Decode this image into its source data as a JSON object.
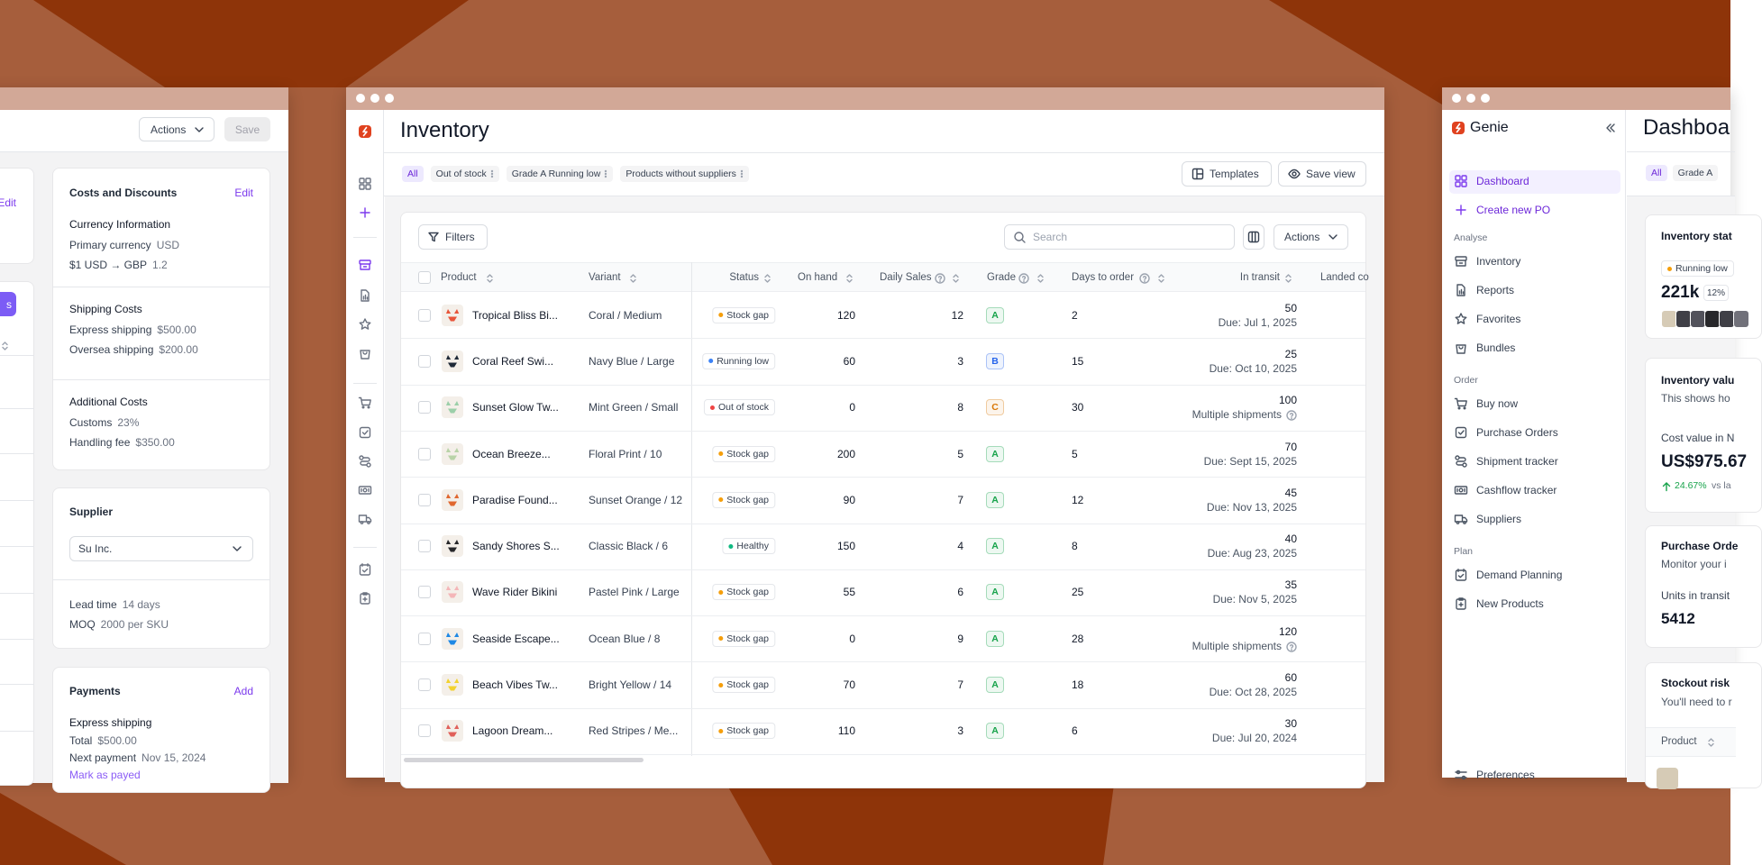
{
  "left_panel": {
    "header": {
      "actions": "Actions",
      "save": "Save"
    },
    "edge": {
      "edit": "Edit",
      "button": "s"
    },
    "costs": {
      "title": "Costs and Discounts",
      "edit": "Edit",
      "sections": [
        {
          "title": "Currency Information",
          "rows": [
            [
              "Primary currency",
              "USD"
            ],
            [
              "$1 USD → GBP",
              "1.2"
            ]
          ]
        },
        {
          "title": "Shipping Costs",
          "rows": [
            [
              "Express shipping",
              "$500.00"
            ],
            [
              "Oversea shipping",
              "$200.00"
            ]
          ]
        },
        {
          "title": "Additional Costs",
          "rows": [
            [
              "Customs",
              "23%"
            ],
            [
              "Handling fee",
              "$350.00"
            ]
          ]
        }
      ]
    },
    "supplier": {
      "title": "Supplier",
      "selected": "Su Inc.",
      "rows": [
        [
          "Lead time",
          "14 days"
        ],
        [
          "MOQ",
          "2000 per SKU"
        ]
      ]
    },
    "payments": {
      "title": "Payments",
      "add": "Add",
      "method": "Express shipping",
      "rows": [
        [
          "Total",
          "$500.00"
        ],
        [
          "Next payment",
          "Nov 15, 2024"
        ]
      ],
      "link": "Mark as payed"
    }
  },
  "inventory": {
    "title": "Inventory",
    "views": [
      "All",
      "Out of stock",
      "Grade A Running low",
      "Products without suppliers"
    ],
    "templates": "Templates",
    "save_view": "Save view",
    "filters": "Filters",
    "search": "Search",
    "actions": "Actions",
    "columns": [
      "Product",
      "Variant",
      "Status",
      "On hand",
      "Daily Sales",
      "Grade",
      "Days to order",
      "In transit",
      "Landed co"
    ],
    "status_colors": {
      "Stock gap": "#f59e0b",
      "Running low": "#3b82f6",
      "Out of stock": "#ef4444",
      "Healthy": "#10b981"
    },
    "grade_colors": {
      "A": "#16a34a",
      "B": "#2563eb",
      "C": "#d97706"
    },
    "rows": [
      {
        "product": "Tropical Bliss Bi...",
        "variant": "Coral / Medium",
        "status": "Stock gap",
        "on_hand": 120,
        "daily_sales": 12,
        "grade": "A",
        "days_to_order": 2,
        "in_transit": 50,
        "note": "Due: Jul 1, 2025"
      },
      {
        "product": "Coral Reef Swi...",
        "variant": "Navy Blue / Large",
        "status": "Running low",
        "on_hand": 60,
        "daily_sales": 3,
        "grade": "B",
        "days_to_order": 15,
        "in_transit": 25,
        "note": "Due: Oct 10, 2025"
      },
      {
        "product": "Sunset Glow Tw...",
        "variant": "Mint Green / Small",
        "status": "Out of stock",
        "on_hand": 0,
        "daily_sales": 8,
        "grade": "C",
        "days_to_order": 30,
        "in_transit": 100,
        "note": "Multiple shipments",
        "info_icon": true
      },
      {
        "product": "Ocean Breeze...",
        "variant": "Floral Print / 10",
        "status": "Stock gap",
        "on_hand": 200,
        "daily_sales": 5,
        "grade": "A",
        "days_to_order": 5,
        "in_transit": 70,
        "note": "Due: Sept 15, 2025"
      },
      {
        "product": "Paradise Found...",
        "variant": "Sunset Orange / 12",
        "status": "Stock gap",
        "on_hand": 90,
        "daily_sales": 7,
        "grade": "A",
        "days_to_order": 12,
        "in_transit": 45,
        "note": "Due: Nov 13, 2025"
      },
      {
        "product": "Sandy Shores S...",
        "variant": "Classic Black / 6",
        "status": "Healthy",
        "on_hand": 150,
        "daily_sales": 4,
        "grade": "A",
        "days_to_order": 8,
        "in_transit": 40,
        "note": "Due: Aug 23, 2025"
      },
      {
        "product": "Wave Rider Bikini",
        "variant": "Pastel Pink / Large",
        "status": "Stock gap",
        "on_hand": 55,
        "daily_sales": 6,
        "grade": "A",
        "days_to_order": 25,
        "in_transit": 35,
        "note": "Due: Nov 5, 2025"
      },
      {
        "product": "Seaside Escape...",
        "variant": "Ocean Blue / 8",
        "status": "Stock gap",
        "on_hand": 0,
        "daily_sales": 9,
        "grade": "A",
        "days_to_order": 28,
        "in_transit": 120,
        "note": "Multiple shipments",
        "info_icon": true
      },
      {
        "product": "Beach Vibes Tw...",
        "variant": "Bright Yellow / 14",
        "status": "Stock gap",
        "on_hand": 70,
        "daily_sales": 7,
        "grade": "A",
        "days_to_order": 18,
        "in_transit": 60,
        "note": "Due: Oct 28, 2025"
      },
      {
        "product": "Lagoon Dream...",
        "variant": "Red Stripes / Me...",
        "status": "Stock gap",
        "on_hand": 110,
        "daily_sales": 3,
        "grade": "A",
        "days_to_order": 6,
        "in_transit": 30,
        "note": "Due: Jul 20, 2024"
      }
    ]
  },
  "dashboard": {
    "brand": "Genie",
    "nav": [
      "Dashboard",
      "Create new PO"
    ],
    "sections": [
      {
        "title": "Analyse",
        "items": [
          "Inventory",
          "Reports",
          "Favorites",
          "Bundles"
        ]
      },
      {
        "title": "Order",
        "items": [
          "Buy now",
          "Purchase Orders",
          "Shipment tracker",
          "Cashflow tracker",
          "Suppliers"
        ]
      },
      {
        "title": "Plan",
        "items": [
          "Demand Planning",
          "New Products"
        ]
      }
    ],
    "preferences": "Preferences",
    "title": "Dashboa",
    "tabs": [
      "All",
      "Grade A"
    ],
    "status_card": {
      "title": "Inventory stat",
      "badge": "Running low",
      "value": "221k",
      "change": "12%"
    },
    "value_card": {
      "title": "Inventory valu",
      "subtitle": "This shows ho",
      "label": "Cost value in N",
      "value": "US$975.67",
      "change": "24.67%",
      "compare": "vs la"
    },
    "po_card": {
      "title": "Purchase Orde",
      "subtitle": "Monitor your i",
      "label": "Units in transit",
      "value": "5412"
    },
    "risk_card": {
      "title": "Stockout risk",
      "subtitle": "You'll need to r",
      "column": "Product"
    }
  }
}
